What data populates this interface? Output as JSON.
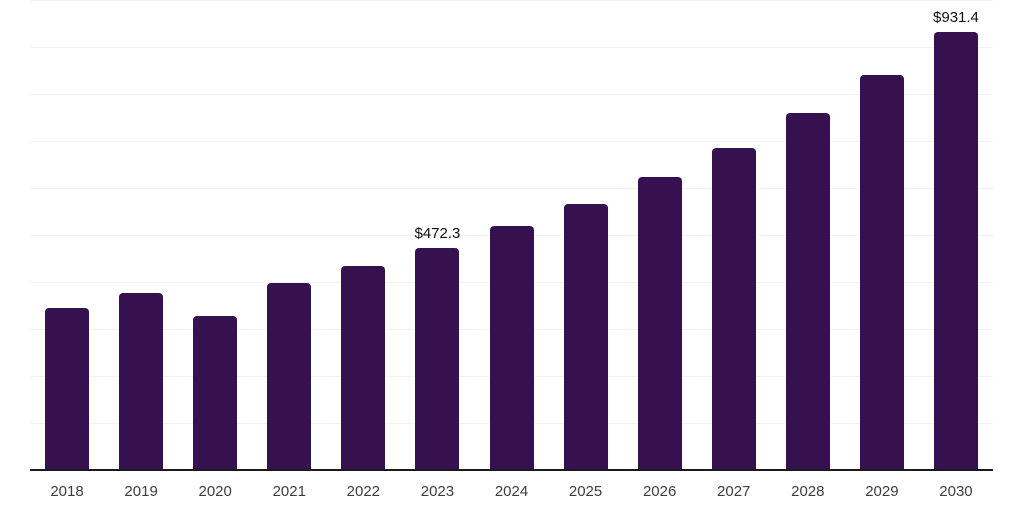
{
  "chart_data": {
    "type": "bar",
    "title": "",
    "categories": [
      "2018",
      "2019",
      "2020",
      "2021",
      "2022",
      "2023",
      "2024",
      "2025",
      "2026",
      "2027",
      "2028",
      "2029",
      "2030"
    ],
    "values": [
      345,
      377,
      328,
      397,
      434,
      472.3,
      519,
      565,
      624,
      685,
      759,
      841,
      931.4
    ],
    "data_labels": {
      "2023": "$472.3",
      "2030": "$931.4"
    },
    "value_prefix": "$",
    "xlabel": "",
    "ylabel": "",
    "ylim": [
      0,
      1000
    ],
    "grid_step": 100,
    "gridlines": "horizontal",
    "legend": "none",
    "colors": {
      "bar": "#36114F",
      "gridline": "#f2f2f2",
      "axis": "#1a1a1a",
      "data_label": "#111111",
      "tick_label": "#3d3d3d",
      "background": "#ffffff"
    }
  }
}
